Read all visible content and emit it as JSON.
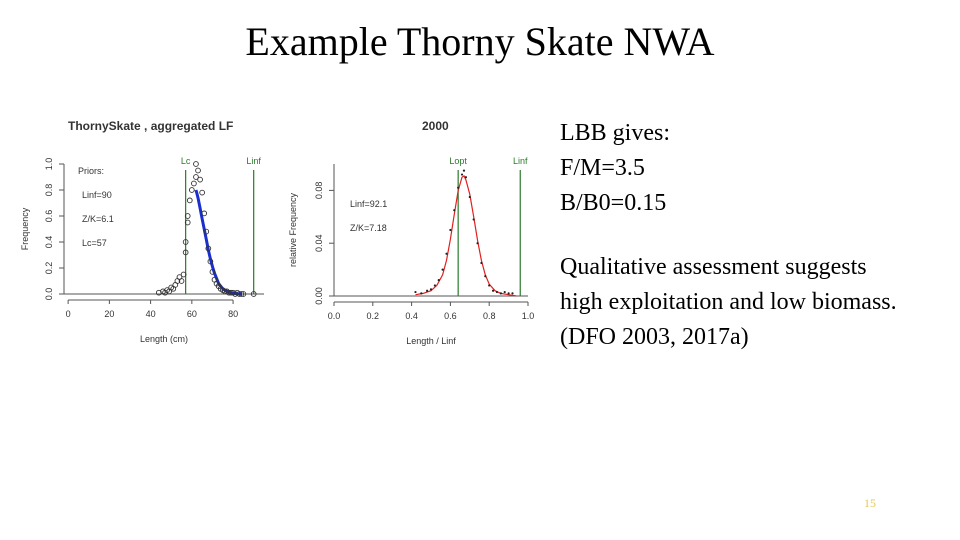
{
  "slide": {
    "title": "Example Thorny Skate NWA",
    "lbb_lines": [
      "LBB gives:",
      "F/M=3.5",
      "B/B0=0.15"
    ],
    "assessment_lines": [
      "Qualitative assessment suggests",
      "high exploitation and low biomass.",
      "(DFO 2003, 2017a)"
    ],
    "page_number": "15"
  },
  "chart_data": [
    {
      "type": "scatter",
      "title": "ThornySkate , aggregated LF",
      "xlabel": "Length (cm)",
      "ylabel": "Frequency",
      "xlim": [
        -2,
        95
      ],
      "ylim": [
        0,
        1.0
      ],
      "xticks": [
        "0",
        "20",
        "40",
        "60",
        "80"
      ],
      "yticks": [
        "0.0",
        "0.2",
        "0.4",
        "0.6",
        "0.8",
        "1.0"
      ],
      "legend": {
        "header": "Priors:",
        "lines": [
          "Linf=90",
          "Z/K=6.1",
          "Lc=57"
        ]
      },
      "vlines": [
        {
          "label": "Lc",
          "x": 57,
          "color": "#2a7a2a"
        },
        {
          "label": "Linf",
          "x": 90,
          "color": "#2a7a2a"
        }
      ],
      "points": {
        "x": [
          44,
          46,
          47,
          48,
          49,
          50,
          51,
          52,
          53,
          54,
          55,
          56,
          57,
          57,
          58,
          58,
          59,
          60,
          61,
          62,
          62,
          63,
          64,
          65,
          66,
          67,
          68,
          69,
          70,
          71,
          72,
          73,
          74,
          75,
          76,
          77,
          78,
          79,
          80,
          81,
          82,
          83,
          84,
          85,
          90
        ],
        "y": [
          0.01,
          0.02,
          0.01,
          0.03,
          0.02,
          0.05,
          0.04,
          0.07,
          0.1,
          0.13,
          0.1,
          0.15,
          0.32,
          0.4,
          0.55,
          0.6,
          0.72,
          0.8,
          0.85,
          0.9,
          1.0,
          0.95,
          0.88,
          0.78,
          0.62,
          0.48,
          0.35,
          0.25,
          0.17,
          0.11,
          0.08,
          0.06,
          0.04,
          0.03,
          0.02,
          0.02,
          0.01,
          0.01,
          0.01,
          0.0,
          0.01,
          0.0,
          0.0,
          0.0,
          0.0
        ]
      },
      "fit": {
        "x": [
          62,
          63,
          64,
          65,
          66,
          67,
          68,
          69,
          70,
          71,
          72,
          73,
          74,
          75,
          76,
          77,
          78,
          79,
          80,
          82,
          84
        ],
        "y": [
          0.8,
          0.74,
          0.66,
          0.58,
          0.5,
          0.42,
          0.34,
          0.27,
          0.21,
          0.16,
          0.12,
          0.08,
          0.06,
          0.04,
          0.03,
          0.02,
          0.015,
          0.01,
          0.005,
          0.002,
          0.0
        ],
        "color": "#1a2fd0"
      }
    },
    {
      "type": "line",
      "title": "2000",
      "xlabel": "Length / Linf",
      "ylabel": "relative Frequency",
      "xlim": [
        0,
        1.0
      ],
      "ylim": [
        0,
        0.1
      ],
      "xticks": [
        "0.0",
        "0.2",
        "0.4",
        "0.6",
        "0.8",
        "1.0"
      ],
      "yticks": [
        "0.00",
        "0.04",
        "0.08"
      ],
      "legend": {
        "lines": [
          "Linf=92.1",
          "Z/K=7.18"
        ]
      },
      "vlines": [
        {
          "label": "Lopt",
          "x": 0.64,
          "color": "#2a7a2a"
        },
        {
          "label": "Linf",
          "x": 0.96,
          "color": "#2a7a2a"
        }
      ],
      "points": {
        "x": [
          0.42,
          0.45,
          0.48,
          0.5,
          0.52,
          0.54,
          0.56,
          0.58,
          0.6,
          0.62,
          0.64,
          0.66,
          0.67,
          0.68,
          0.7,
          0.72,
          0.74,
          0.76,
          0.78,
          0.8,
          0.82,
          0.84,
          0.86,
          0.88,
          0.9,
          0.92
        ],
        "y": [
          0.003,
          0.002,
          0.004,
          0.005,
          0.008,
          0.012,
          0.02,
          0.032,
          0.05,
          0.065,
          0.082,
          0.092,
          0.095,
          0.09,
          0.075,
          0.058,
          0.04,
          0.025,
          0.015,
          0.008,
          0.004,
          0.003,
          0.002,
          0.003,
          0.002,
          0.002
        ]
      },
      "fit": {
        "x": [
          0.42,
          0.46,
          0.5,
          0.53,
          0.56,
          0.58,
          0.6,
          0.62,
          0.64,
          0.66,
          0.67,
          0.68,
          0.7,
          0.72,
          0.74,
          0.76,
          0.78,
          0.8,
          0.83,
          0.86,
          0.9,
          0.94
        ],
        "y": [
          0.001,
          0.002,
          0.004,
          0.008,
          0.016,
          0.027,
          0.043,
          0.062,
          0.08,
          0.09,
          0.091,
          0.088,
          0.077,
          0.06,
          0.042,
          0.027,
          0.016,
          0.009,
          0.004,
          0.002,
          0.001,
          0.0
        ],
        "color": "#e02020"
      }
    }
  ]
}
